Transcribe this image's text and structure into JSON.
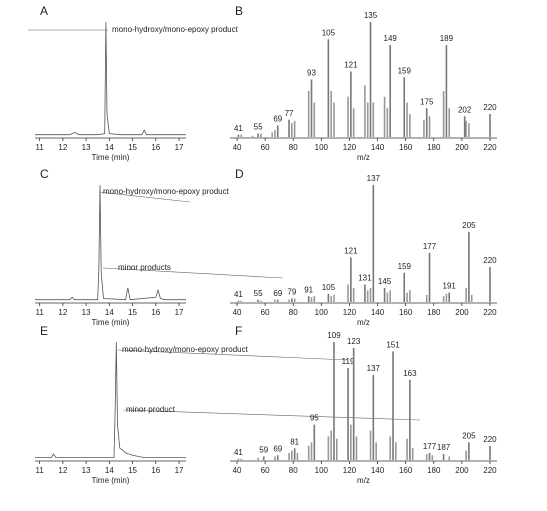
{
  "chart_data": [
    {
      "type": "line",
      "title": "A",
      "xlabel": "Time (min)",
      "annotations": [
        "mono-hydroxy/mono-epoxy product"
      ],
      "color": "#555555",
      "x": [
        10.8,
        11.5,
        12.3,
        12.5,
        12.7,
        13.5,
        13.8,
        13.85,
        13.9,
        14.0,
        14.5,
        15.4,
        15.5,
        15.6,
        16.5,
        17.3
      ],
      "values": [
        2,
        2,
        2,
        4,
        2,
        2,
        3,
        100,
        20,
        3,
        2,
        2,
        6,
        2,
        2,
        2
      ],
      "xlim": [
        10.8,
        17.3
      ],
      "ylim": [
        0,
        100
      ],
      "xticks": [
        11,
        12,
        13,
        14,
        15,
        16,
        17
      ]
    },
    {
      "type": "spectrum",
      "title": "B",
      "xlabel": "m/z",
      "color": "#999999",
      "peaks": {
        "x": [
          41,
          55,
          69,
          77,
          93,
          105,
          121,
          135,
          149,
          159,
          175,
          189,
          202,
          220
        ],
        "values": [
          2,
          3,
          10,
          15,
          50,
          85,
          57,
          100,
          80,
          52,
          25,
          80,
          18,
          20
        ]
      },
      "minor": {
        "x": [
          43,
          51,
          57,
          65,
          67,
          79,
          81,
          91,
          95,
          107,
          109,
          119,
          123,
          131,
          133,
          137,
          145,
          147,
          161,
          163,
          173,
          177,
          187,
          191,
          203,
          205
        ],
        "values": [
          2,
          1,
          3,
          4,
          6,
          12,
          14,
          40,
          30,
          40,
          30,
          35,
          25,
          45,
          30,
          30,
          35,
          25,
          30,
          20,
          15,
          18,
          40,
          25,
          14,
          12
        ]
      },
      "xlim": [
        35,
        225
      ],
      "ylim": [
        0,
        100
      ],
      "xticks": [
        40,
        60,
        80,
        100,
        120,
        140,
        160,
        180,
        200,
        220
      ]
    },
    {
      "type": "line",
      "title": "C",
      "xlabel": "Time (min)",
      "annotations": [
        "mono-hydroxy/mono-epoxy product",
        "minor products"
      ],
      "color": "#555555",
      "x": [
        10.8,
        12.3,
        12.4,
        12.5,
        13.5,
        13.55,
        13.6,
        13.65,
        13.75,
        14.7,
        14.75,
        14.8,
        14.9,
        16.0,
        16.1,
        16.2,
        16.4,
        17.3
      ],
      "values": [
        2,
        2,
        4,
        2,
        2,
        30,
        100,
        25,
        3,
        2,
        8,
        12,
        2,
        4,
        10,
        3,
        2,
        2
      ],
      "xlim": [
        10.8,
        17.3
      ],
      "ylim": [
        0,
        100
      ],
      "xticks": [
        11,
        12,
        13,
        14,
        15,
        16,
        17
      ]
    },
    {
      "type": "spectrum",
      "title": "D",
      "xlabel": "m/z",
      "color": "#999999",
      "peaks": {
        "x": [
          41,
          55,
          69,
          79,
          91,
          105,
          121,
          131,
          137,
          145,
          159,
          177,
          191,
          205,
          220
        ],
        "values": [
          1,
          2,
          2,
          3,
          5,
          7,
          38,
          15,
          100,
          12,
          25,
          42,
          8,
          60,
          30
        ]
      },
      "minor": {
        "x": [
          43,
          57,
          67,
          77,
          81,
          93,
          95,
          107,
          109,
          119,
          123,
          133,
          135,
          147,
          149,
          161,
          163,
          175,
          187,
          189,
          203,
          207
        ],
        "values": [
          1,
          1,
          2,
          2,
          3,
          4,
          5,
          5,
          6,
          15,
          12,
          10,
          12,
          8,
          10,
          8,
          10,
          6,
          5,
          7,
          12,
          6
        ]
      },
      "xlim": [
        35,
        225
      ],
      "ylim": [
        0,
        100
      ],
      "xticks": [
        40,
        60,
        80,
        100,
        120,
        140,
        160,
        180,
        200,
        220
      ]
    },
    {
      "type": "line",
      "title": "E",
      "xlabel": "Time (min)",
      "annotations": [
        "mono-hydroxy/mono-epoxy product",
        "minor product"
      ],
      "color": "#555555",
      "x": [
        10.8,
        11.5,
        11.6,
        11.7,
        14.2,
        14.25,
        14.3,
        14.35,
        14.45,
        14.6,
        14.7,
        15.0,
        15.5,
        17.3
      ],
      "values": [
        2,
        2,
        5,
        2,
        2,
        40,
        100,
        30,
        10,
        8,
        6,
        4,
        2,
        2
      ],
      "xlim": [
        10.8,
        17.3
      ],
      "ylim": [
        0,
        100
      ],
      "xticks": [
        11,
        12,
        13,
        14,
        15,
        16,
        17
      ]
    },
    {
      "type": "spectrum",
      "title": "F",
      "xlabel": "m/z",
      "color": "#999999",
      "peaks": {
        "x": [
          41,
          59,
          69,
          81,
          95,
          109,
          119,
          123,
          137,
          151,
          163,
          177,
          187,
          205,
          220
        ],
        "values": [
          1,
          3,
          4,
          10,
          30,
          100,
          78,
          95,
          72,
          92,
          68,
          6,
          5,
          15,
          12
        ]
      },
      "minor": {
        "x": [
          43,
          55,
          67,
          77,
          79,
          83,
          91,
          93,
          105,
          107,
          111,
          121,
          125,
          135,
          139,
          149,
          153,
          161,
          165,
          175,
          179,
          191,
          203
        ],
        "values": [
          1,
          2,
          3,
          6,
          8,
          6,
          12,
          15,
          20,
          25,
          18,
          30,
          20,
          25,
          15,
          20,
          15,
          18,
          10,
          5,
          4,
          3,
          8
        ]
      },
      "xlim": [
        35,
        225
      ],
      "ylim": [
        0,
        100
      ],
      "xticks": [
        40,
        60,
        80,
        100,
        120,
        140,
        160,
        180,
        200,
        220
      ]
    }
  ]
}
